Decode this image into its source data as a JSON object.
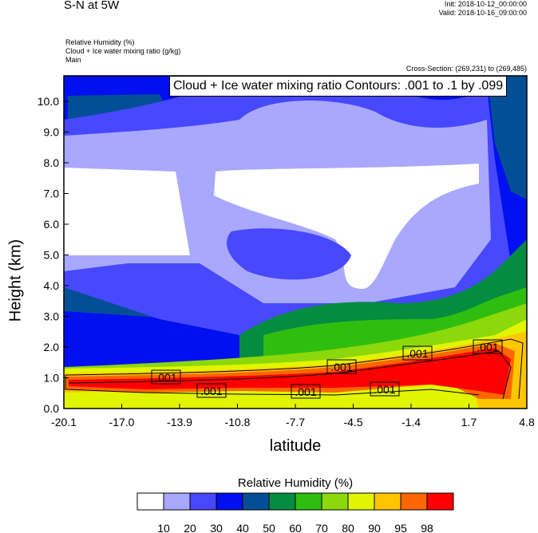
{
  "header": {
    "title": "S-N at 5W",
    "init": "Init: 2018-10-12_00:00:00",
    "valid": "Valid: 2018-10-16_09:00:00",
    "field1": "Relative Humidity   (%)",
    "field2": "Cloud + Ice water mixing ratio    (g/kg)",
    "field3": "Main",
    "cross_section": "Cross-Section: (269,231) to (269,485)"
  },
  "chart_data": {
    "type": "heatmap",
    "title": "S-N at 5W",
    "xlabel": "latitude",
    "ylabel": "Height (km)",
    "xlim": [
      -20.1,
      4.8
    ],
    "ylim": [
      0,
      10.8
    ],
    "xticks": [
      "-20.1",
      "-17.0",
      "-13.9",
      "-10.8",
      "-7.7",
      "-4.5",
      "-1.4",
      "1.7",
      "4.8"
    ],
    "yticks": [
      "0.0",
      "1.0",
      "2.0",
      "3.0",
      "4.0",
      "5.0",
      "6.0",
      "7.0",
      "8.0",
      "9.0",
      "10.0"
    ],
    "contour_title": "Cloud + Ice water mixing ratio Contours: .001 to .1 by .099",
    "contour_labels": [
      ".001",
      ".001",
      ".001",
      ".001",
      ".001",
      ".001",
      ".001",
      ".001"
    ],
    "colorbar": {
      "title": "Relative Humidity  (%)",
      "levels": [
        "10",
        "20",
        "30",
        "40",
        "50",
        "60",
        "70",
        "80",
        "90",
        "95",
        "98"
      ],
      "colors": [
        "#ffffff",
        "#a8a8ff",
        "#4848ff",
        "#0010f0",
        "#034f96",
        "#058c40",
        "#2fbe10",
        "#8cd80a",
        "#e1f500",
        "#ffc600",
        "#ff6600",
        "#ff0000"
      ]
    }
  }
}
